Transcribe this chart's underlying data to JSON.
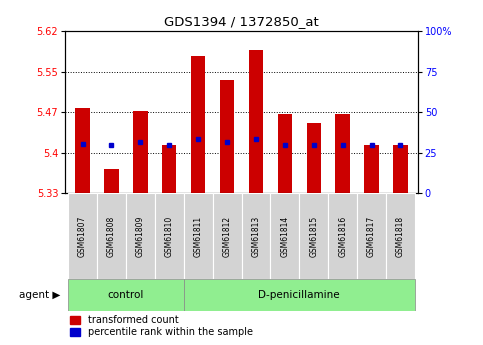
{
  "title": "GDS1394 / 1372850_at",
  "samples": [
    "GSM61807",
    "GSM61808",
    "GSM61809",
    "GSM61810",
    "GSM61811",
    "GSM61812",
    "GSM61813",
    "GSM61814",
    "GSM61815",
    "GSM61816",
    "GSM61817",
    "GSM61818"
  ],
  "red_values": [
    5.483,
    5.37,
    5.478,
    5.415,
    5.578,
    5.535,
    5.59,
    5.472,
    5.455,
    5.472,
    5.415,
    5.415
  ],
  "blue_values": [
    5.416,
    5.415,
    5.42,
    5.415,
    5.425,
    5.42,
    5.425,
    5.415,
    5.415,
    5.415,
    5.415,
    5.415
  ],
  "y_min": 5.325,
  "y_max": 5.625,
  "y_ticks_left": [
    5.325,
    5.4,
    5.475,
    5.55,
    5.625
  ],
  "y_ticks_right_vals": [
    0,
    25,
    50,
    75,
    100
  ],
  "y_ticks_right_labels": [
    "0",
    "25",
    "50",
    "75",
    "100%"
  ],
  "bar_bottom": 5.325,
  "bar_color": "#cc0000",
  "blue_color": "#0000cc",
  "control_label": "control",
  "dpenic_label": "D-penicillamine",
  "legend_red": "transformed count",
  "legend_blue": "percentile rank within the sample",
  "n_control": 4,
  "n_dpenic": 8,
  "bar_width": 0.5
}
